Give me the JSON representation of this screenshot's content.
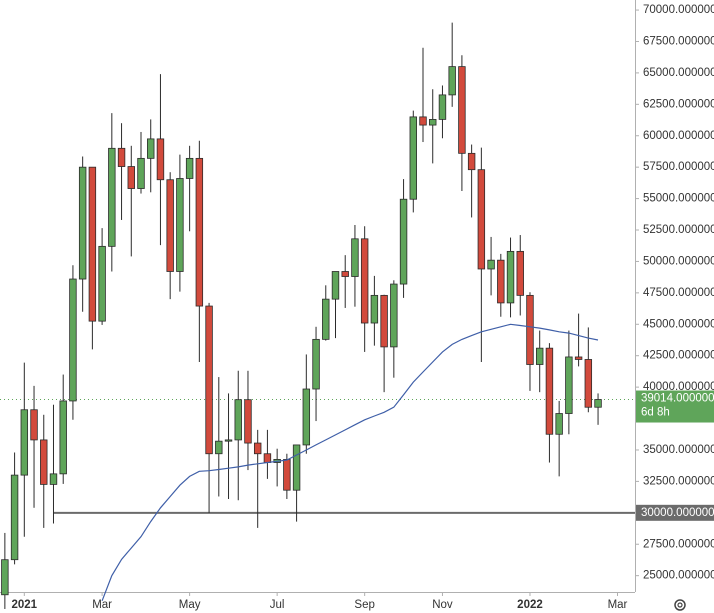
{
  "chart_data": {
    "type": "candlestick",
    "open": [
      23480,
      26270,
      33000,
      38200,
      35800,
      32260,
      33100,
      38900,
      48600,
      57500,
      45250,
      51200,
      59000,
      57550,
      55800,
      58200,
      59750,
      56500,
      49200,
      56600,
      58200,
      46450,
      34700,
      35700,
      35800,
      39000,
      35550,
      34700,
      34000,
      34250,
      31800,
      35400,
      39850,
      43800,
      47000,
      49200,
      48800,
      51800,
      45100,
      47300,
      43200,
      48200,
      54950,
      61500,
      60850,
      61300,
      63250,
      65500,
      58600,
      57300,
      49400,
      50100,
      46700,
      50800,
      47300,
      41800,
      43100,
      36250,
      37900,
      42400,
      42200,
      38400
    ],
    "high": [
      28400,
      34800,
      41950,
      40100,
      37800,
      38600,
      41000,
      49700,
      58350,
      57500,
      52650,
      61800,
      61000,
      59200,
      60300,
      61300,
      64900,
      57100,
      58500,
      59200,
      59600,
      46700,
      40800,
      39500,
      41300,
      41300,
      36600,
      36600,
      35100,
      34700,
      35400,
      42600,
      44800,
      48100,
      49200,
      50500,
      52900,
      52800,
      48850,
      47350,
      48500,
      56550,
      62000,
      67000,
      63700,
      64000,
      69000,
      66400,
      59300,
      59050,
      51950,
      50600,
      51900,
      52100,
      47550,
      44500,
      43500,
      38900,
      44500,
      45850,
      44750,
      39500
    ],
    "low": [
      22350,
      25900,
      28100,
      30400,
      28800,
      29150,
      32300,
      37400,
      46000,
      43000,
      44950,
      49200,
      53300,
      50400,
      55400,
      55500,
      51300,
      47000,
      47600,
      52400,
      42000,
      30000,
      31300,
      31100,
      31000,
      33400,
      28800,
      32700,
      32100,
      31100,
      29300,
      34700,
      37300,
      43700,
      43900,
      46300,
      46400,
      42800,
      43300,
      39600,
      40750,
      47100,
      53900,
      59500,
      57800,
      59800,
      62300,
      55600,
      53500,
      42000,
      47300,
      45600,
      45550,
      45700,
      39700,
      39600,
      34000,
      32900,
      36250,
      41650,
      38000,
      37000
    ],
    "close": [
      26270,
      33000,
      38200,
      35800,
      32260,
      33100,
      38900,
      48600,
      57500,
      45250,
      51200,
      59000,
      57550,
      55800,
      58200,
      59750,
      56500,
      49200,
      56600,
      58200,
      46450,
      34700,
      35700,
      35800,
      39000,
      35550,
      34700,
      34000,
      34250,
      31800,
      35400,
      39850,
      43800,
      47000,
      49200,
      48800,
      51800,
      45100,
      47300,
      43200,
      48200,
      54950,
      61500,
      60850,
      61300,
      63250,
      65500,
      58600,
      57300,
      49400,
      50100,
      46700,
      50800,
      47300,
      41800,
      43100,
      36250,
      37900,
      42400,
      42200,
      38400,
      39014
    ],
    "ma": [
      null,
      null,
      null,
      null,
      null,
      null,
      null,
      null,
      null,
      null,
      23000,
      25000,
      26300,
      27200,
      28100,
      29300,
      30400,
      31300,
      32200,
      32900,
      33300,
      33350,
      33450,
      33550,
      33650,
      33800,
      33900,
      34000,
      34100,
      34200,
      34600,
      35000,
      35400,
      35800,
      36200,
      36600,
      37000,
      37400,
      37700,
      38000,
      38400,
      39400,
      40400,
      41200,
      42000,
      42800,
      43400,
      43800,
      44100,
      44400,
      44600,
      44800,
      45000,
      44900,
      44800,
      44700,
      44550,
      44400,
      44300,
      44100,
      43900,
      43750
    ],
    "up_color": "#5fa55a",
    "down_color": "#d24a3c",
    "ma_color": "#3f5fa8",
    "xlim": [
      -0.5,
      64.8
    ],
    "xticks": [
      {
        "value": 2,
        "label": "2021"
      },
      {
        "value": 10,
        "label": "Mar"
      },
      {
        "value": 19,
        "label": "May"
      },
      {
        "value": 28,
        "label": "Jul"
      },
      {
        "value": 37,
        "label": "Sep"
      },
      {
        "value": 45,
        "label": "Nov"
      },
      {
        "value": 54,
        "label": "2022"
      },
      {
        "value": 63,
        "label": "Mar"
      }
    ],
    "ylim": [
      23700,
      70800
    ],
    "yticks": [
      {
        "value": 25000,
        "label": "25000.000000"
      },
      {
        "value": 27500,
        "label": "27500.000000"
      },
      {
        "value": 30000,
        "label": "30000.000000"
      },
      {
        "value": 32500,
        "label": "32500.000000"
      },
      {
        "value": 35000,
        "label": "35000.000000"
      },
      {
        "value": 37500,
        "label": "37500.000000"
      },
      {
        "value": 40000,
        "label": "40000.000000"
      },
      {
        "value": 42500,
        "label": "42500.000000"
      },
      {
        "value": 45000,
        "label": "45000.000000"
      },
      {
        "value": 47500,
        "label": "47500.000000"
      },
      {
        "value": 50000,
        "label": "50000.000000"
      },
      {
        "value": 52500,
        "label": "52500.000000"
      },
      {
        "value": 55000,
        "label": "55000.000000"
      },
      {
        "value": 57500,
        "label": "57500.000000"
      },
      {
        "value": 60000,
        "label": "60000.000000"
      },
      {
        "value": 62500,
        "label": "62500.000000"
      },
      {
        "value": 65000,
        "label": "65000.000000"
      },
      {
        "value": 67500,
        "label": "67500.000000"
      },
      {
        "value": 70000,
        "label": "70000.000000"
      }
    ],
    "hline": {
      "value": 30000,
      "label": "30000.000000",
      "start": 5
    },
    "last_price": {
      "value": 39014,
      "label": "39014.000000",
      "countdown": "6d 8h"
    }
  }
}
